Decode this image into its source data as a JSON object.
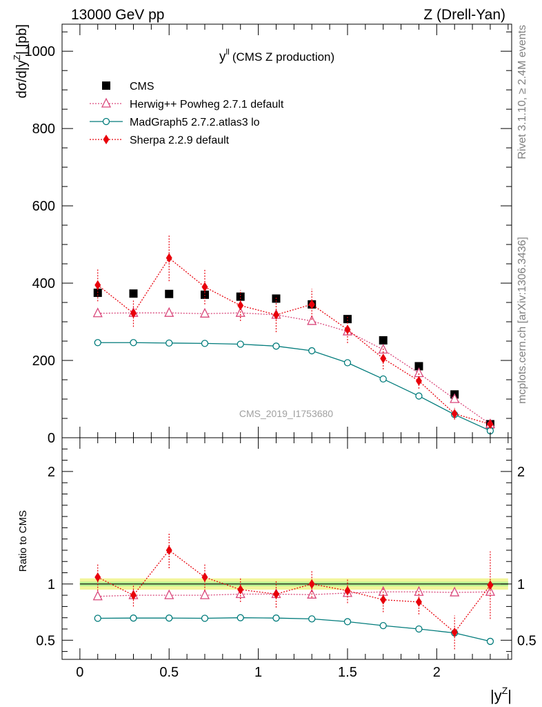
{
  "header": {
    "left": "13000 GeV pp",
    "right": "Z (Drell-Yan)"
  },
  "side_text": {
    "rivet": "Rivet 3.1.10, ≥ 2.4M events",
    "mcplots": "mcplots.cern.ch [arXiv:1306.3436]"
  },
  "chart_data": {
    "type": "line",
    "title": "(CMS Z production)",
    "title_symbol": "y",
    "title_symbol_sup": "ll",
    "watermark": "CMS_2019_I1753680",
    "xlabel": "|y",
    "xlabel_sup": "Z",
    "xlabel_end": "|",
    "xlim": [
      -0.1,
      2.42
    ],
    "x_ticks": [
      0,
      0.5,
      1,
      1.5,
      2
    ],
    "x_tick_labels": [
      "0",
      "0.5",
      "1",
      "1.5",
      "2"
    ],
    "x": [
      0.1,
      0.3,
      0.5,
      0.7,
      0.9,
      1.1,
      1.3,
      1.5,
      1.7,
      1.9,
      2.1,
      2.3
    ],
    "main": {
      "ylabel": "dσ/d|y",
      "ylabel_sup": "Z",
      "ylabel_end": "| [pb]",
      "ylim": [
        0,
        1070
      ],
      "y_ticks": [
        0,
        200,
        400,
        600,
        800,
        1000
      ],
      "y_tick_labels": [
        "0",
        "200",
        "400",
        "600",
        "800",
        "1000"
      ]
    },
    "ratio": {
      "ylabel": "Ratio to CMS",
      "ylim": [
        0.33,
        2.3
      ],
      "y_ticks": [
        0.5,
        1,
        2
      ],
      "y_tick_labels": [
        "0.5",
        "1",
        "2"
      ],
      "band_inner": [
        0.98,
        1.02
      ],
      "band_outer": [
        0.95,
        1.05
      ]
    },
    "legend_position": "top-left",
    "series": [
      {
        "name": "CMS",
        "color": "#000000",
        "marker": "square",
        "values": [
          375,
          373,
          372,
          370,
          365,
          360,
          345,
          307,
          252,
          185,
          112,
          35
        ],
        "ratio": [
          1,
          1,
          1,
          1,
          1,
          1,
          1,
          1,
          1,
          1,
          1,
          1
        ]
      },
      {
        "name": "Herwig++ Powheg 2.7.1 default",
        "color": "#d9467a",
        "marker": "open-triangle",
        "line": "dotted",
        "values": [
          322,
          323,
          323,
          321,
          323,
          318,
          302,
          275,
          228,
          167,
          100,
          35
        ],
        "ratio": [
          0.89,
          0.9,
          0.9,
          0.9,
          0.91,
          0.91,
          0.905,
          0.92,
          0.93,
          0.93,
          0.925,
          0.93
        ]
      },
      {
        "name": "MadGraph5 2.7.2.atlas3 lo",
        "color": "#007b7b",
        "marker": "open-circle",
        "line": "solid",
        "values": [
          246,
          246,
          245,
          244,
          242,
          237,
          225,
          194,
          152,
          108,
          60,
          18
        ],
        "ratio": [
          0.695,
          0.697,
          0.697,
          0.695,
          0.7,
          0.697,
          0.69,
          0.665,
          0.63,
          0.6,
          0.565,
          0.49
        ]
      },
      {
        "name": "Sherpa 2.2.9 default",
        "color": "#e8000b",
        "marker": "filled-diamond",
        "line": "dotted",
        "values": [
          395,
          322,
          465,
          390,
          342,
          318,
          345,
          280,
          205,
          147,
          62,
          35
        ],
        "errors": [
          42,
          35,
          60,
          45,
          40,
          45,
          40,
          35,
          28,
          20,
          15,
          10
        ],
        "ratio": [
          1.06,
          0.9,
          1.3,
          1.06,
          0.95,
          0.91,
          1.0,
          0.94,
          0.86,
          0.84,
          0.57,
          0.99
        ],
        "ratio_errors": [
          0.12,
          0.1,
          0.16,
          0.12,
          0.11,
          0.12,
          0.12,
          0.11,
          0.11,
          0.11,
          0.15,
          0.3
        ]
      }
    ]
  }
}
